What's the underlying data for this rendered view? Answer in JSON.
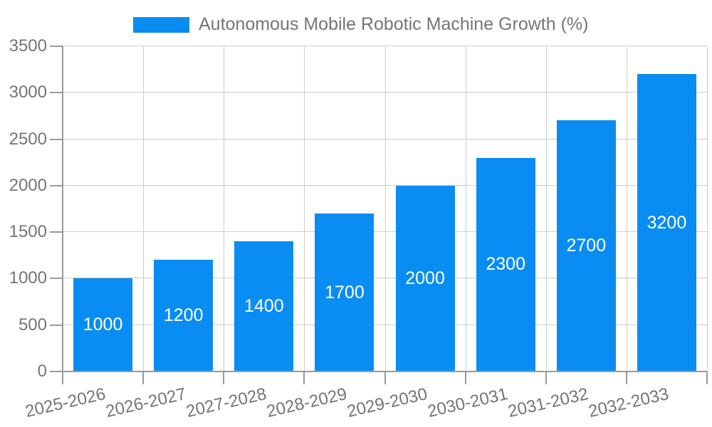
{
  "chart_data": {
    "type": "bar",
    "title": "Autonomous Mobile Robotic Machine Growth (%)",
    "categories": [
      "2025-2026",
      "2026-2027",
      "2027-2028",
      "2028-2029",
      "2029-2030",
      "2030-2031",
      "2031-2032",
      "2032-2033"
    ],
    "values": [
      1000,
      1200,
      1400,
      1700,
      2000,
      2300,
      2700,
      3200
    ],
    "value_labels": [
      "1000",
      "1200",
      "1400",
      "1700",
      "2000",
      "2300",
      "2700",
      "3200"
    ],
    "xlabel": "",
    "ylabel": "",
    "ylim": [
      0,
      3500
    ],
    "ytick_step": 500,
    "ytick_labels": [
      "0",
      "500",
      "1000",
      "1500",
      "2000",
      "2500",
      "3000",
      "3500"
    ],
    "grid": true,
    "legend_position": "top",
    "colors": {
      "bar": "#0a8df2",
      "value_label": "#ffffff",
      "axis_text": "#757575",
      "legend_text": "#757575",
      "gridline": "#cccccc",
      "axis_line": "#9a9a9a",
      "background": "#ffffff"
    }
  }
}
